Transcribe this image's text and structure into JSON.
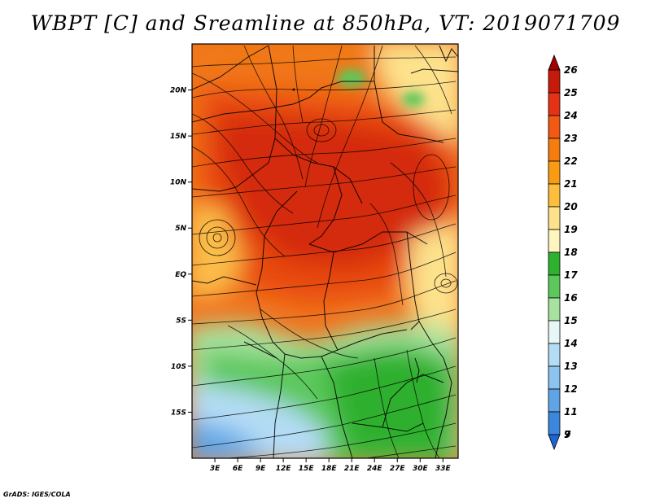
{
  "title": "WBPT [C] and Sreamline at 850hPa, VT: 2019071709",
  "credit": "GrADS: IGES/COLA",
  "map": {
    "lat_range": [
      -20,
      25
    ],
    "lon_range": [
      0,
      35
    ],
    "lat_ticks": [
      {
        "value": 20,
        "label": "20N"
      },
      {
        "value": 15,
        "label": "15N"
      },
      {
        "value": 10,
        "label": "10N"
      },
      {
        "value": 5,
        "label": "5N"
      },
      {
        "value": 0,
        "label": "EQ"
      },
      {
        "value": -5,
        "label": "5S"
      },
      {
        "value": -10,
        "label": "10S"
      },
      {
        "value": -15,
        "label": "15S"
      }
    ],
    "lon_ticks": [
      {
        "value": 3,
        "label": "3E"
      },
      {
        "value": 6,
        "label": "6E"
      },
      {
        "value": 9,
        "label": "9E"
      },
      {
        "value": 12,
        "label": "12E"
      },
      {
        "value": 15,
        "label": "15E"
      },
      {
        "value": 18,
        "label": "18E"
      },
      {
        "value": 21,
        "label": "21E"
      },
      {
        "value": 24,
        "label": "24E"
      },
      {
        "value": 27,
        "label": "27E"
      },
      {
        "value": 30,
        "label": "30E"
      },
      {
        "value": 33,
        "label": "33E"
      }
    ]
  },
  "colorbar": {
    "levels": [
      {
        "label": "26",
        "color": "#a50000"
      },
      {
        "label": "25",
        "color": "#c81a0a"
      },
      {
        "label": "24",
        "color": "#e63214"
      },
      {
        "label": "23",
        "color": "#f05a14"
      },
      {
        "label": "22",
        "color": "#f57d0f"
      },
      {
        "label": "21",
        "color": "#fa9b14"
      },
      {
        "label": "20",
        "color": "#fcbe3c"
      },
      {
        "label": "19",
        "color": "#fde28c"
      },
      {
        "label": "18",
        "color": "#fff5c0"
      },
      {
        "label": "17",
        "color": "#2fb02f"
      },
      {
        "label": "16",
        "color": "#5cc85c"
      },
      {
        "label": "15",
        "color": "#a8e2a0"
      },
      {
        "label": "14",
        "color": "#e6f7f5"
      },
      {
        "label": "13",
        "color": "#b4dcf5"
      },
      {
        "label": "12",
        "color": "#8cc3ef"
      },
      {
        "label": "11",
        "color": "#5fa5e6"
      },
      {
        "label": "9",
        "color": "#3c87dc"
      },
      {
        "label": "7",
        "color": "#1e64d2"
      }
    ]
  },
  "colors": {
    "very_hot": "#d42a10",
    "hot": "#e8480f",
    "warm": "#f07a14",
    "mild": "#fbbd49",
    "pale": "#fde28c",
    "green_dark": "#2fb02f",
    "green": "#5cc85c",
    "green_light": "#a8e2a0",
    "blue_light": "#b4dcf5",
    "blue": "#5fa5e6"
  }
}
